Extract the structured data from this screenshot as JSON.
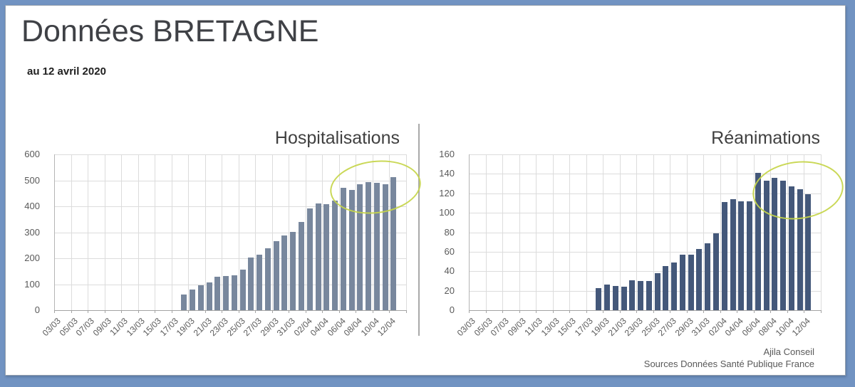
{
  "header": {
    "title": "Données BRETAGNE",
    "subtitle": "au 12 avril 2020"
  },
  "footer": {
    "credit": "Ajila Conseil",
    "source": "Sources Données Santé Publique France"
  },
  "colors": {
    "frame": "#7193c2",
    "panel_bg": "#ffffff",
    "title_text": "#3f4146",
    "axis_text": "#595959",
    "gridline": "#dcdcdc",
    "divider": "#a9a9a9",
    "hospitalisations_bar": "#78879d",
    "reanimations_bar": "#44587a",
    "annotation_ellipse": "#c6d549"
  },
  "chart_data": [
    {
      "type": "bar",
      "title": "Hospitalisations",
      "x_tick_labels": [
        "03/03",
        "05/03",
        "07/03",
        "09/03",
        "11/03",
        "13/03",
        "15/03",
        "17/03",
        "19/03",
        "21/03",
        "23/03",
        "25/03",
        "27/03",
        "29/03",
        "31/03",
        "02/04",
        "04/04",
        "06/04",
        "08/04",
        "10/04",
        "12/04"
      ],
      "bar_dates": [
        "18/03",
        "19/03",
        "20/03",
        "21/03",
        "22/03",
        "23/03",
        "24/03",
        "25/03",
        "26/03",
        "27/03",
        "28/03",
        "29/03",
        "30/03",
        "31/03",
        "01/04",
        "02/04",
        "03/04",
        "04/04",
        "05/04",
        "06/04",
        "07/04",
        "08/04",
        "09/04",
        "10/04",
        "11/04",
        "12/04"
      ],
      "values": [
        61,
        79,
        95,
        108,
        129,
        131,
        135,
        157,
        203,
        215,
        239,
        266,
        288,
        302,
        341,
        391,
        412,
        408,
        422,
        471,
        462,
        486,
        494,
        490,
        486,
        512
      ],
      "ylim": [
        0,
        600
      ],
      "y_tick_step": 100,
      "y_tick_labels": [
        "0",
        "100",
        "200",
        "300",
        "400",
        "500",
        "600"
      ],
      "grid": true,
      "legend": "none",
      "first_bar_day_offset": 15,
      "x_axis_days": 41,
      "bar_color": "#78879d",
      "annotation": "hand-drawn yellow-green ellipse circling the most recent bars (06/04-12/04)"
    },
    {
      "type": "bar",
      "title": "Réanimations",
      "x_tick_labels": [
        "03/03",
        "05/03",
        "07/03",
        "09/03",
        "11/03",
        "13/03",
        "15/03",
        "17/03",
        "19/03",
        "21/03",
        "23/03",
        "25/03",
        "27/03",
        "29/03",
        "31/03",
        "02/04",
        "04/04",
        "06/04",
        "08/04",
        "10/04",
        "12/04"
      ],
      "bar_dates": [
        "18/03",
        "19/03",
        "20/03",
        "21/03",
        "22/03",
        "23/03",
        "24/03",
        "25/03",
        "26/03",
        "27/03",
        "28/03",
        "29/03",
        "30/03",
        "31/03",
        "01/04",
        "02/04",
        "03/04",
        "04/04",
        "05/04",
        "06/04",
        "07/04",
        "08/04",
        "09/04",
        "10/04",
        "11/04",
        "12/04"
      ],
      "values": [
        23,
        26,
        25,
        24,
        31,
        30,
        30,
        38,
        45,
        49,
        57,
        57,
        63,
        69,
        79,
        111,
        114,
        112,
        112,
        141,
        133,
        136,
        133,
        127,
        124,
        119
      ],
      "ylim": [
        0,
        160
      ],
      "y_tick_step": 20,
      "y_tick_labels": [
        "0",
        "20",
        "40",
        "60",
        "80",
        "100",
        "120",
        "140",
        "160"
      ],
      "grid": true,
      "legend": "none",
      "first_bar_day_offset": 15,
      "x_axis_days": 41,
      "bar_color": "#44587a",
      "annotation": "hand-drawn yellow-green ellipse circling the most recent bars (06/04-12/04)"
    }
  ]
}
